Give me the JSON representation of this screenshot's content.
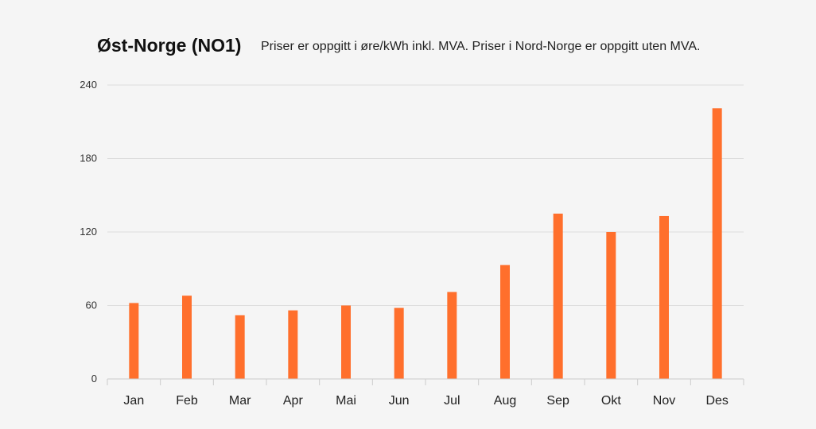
{
  "header": {
    "title": "Øst-Norge (NO1)",
    "subtitle": "Priser er oppgitt i øre/kWh inkl. MVA. Priser i Nord-Norge er oppgitt uten MVA."
  },
  "chart_data": {
    "type": "bar",
    "title": "Øst-Norge (NO1)",
    "subtitle": "Priser er oppgitt i øre/kWh inkl. MVA. Priser i Nord-Norge er oppgitt uten MVA.",
    "xlabel": "",
    "ylabel": "",
    "categories": [
      "Jan",
      "Feb",
      "Mar",
      "Apr",
      "Mai",
      "Jun",
      "Jul",
      "Aug",
      "Sep",
      "Okt",
      "Nov",
      "Des"
    ],
    "values": [
      62,
      68,
      52,
      56,
      60,
      58,
      71,
      93,
      135,
      120,
      133,
      221
    ],
    "ylim": [
      0,
      240
    ],
    "yticks": [
      0,
      60,
      120,
      180,
      240
    ],
    "grid": true,
    "legend": "none",
    "bar_color": "#ff6f2c",
    "grid_color": "#dddddd"
  }
}
